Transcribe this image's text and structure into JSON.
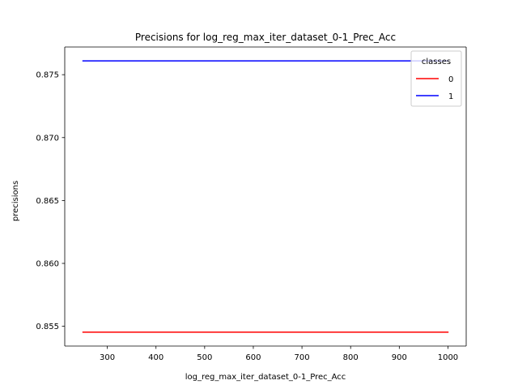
{
  "chart_data": {
    "type": "line",
    "title": "Precisions for log_reg_max_iter_dataset_0-1_Prec_Acc",
    "xlabel": "log_reg_max_iter_dataset_0-1_Prec_Acc",
    "ylabel": "precisions",
    "x": [
      250,
      1000
    ],
    "xlim": [
      212.5,
      1037.5
    ],
    "ylim": [
      0.85343,
      0.8772
    ],
    "xticks": [
      300,
      400,
      500,
      600,
      700,
      800,
      900,
      1000
    ],
    "xtick_labels": [
      "300",
      "400",
      "500",
      "600",
      "700",
      "800",
      "900",
      "1000"
    ],
    "yticks": [
      0.855,
      0.86,
      0.865,
      0.87,
      0.875
    ],
    "ytick_labels": [
      "0.855",
      "0.860",
      "0.865",
      "0.870",
      "0.875"
    ],
    "grid": false,
    "legend": {
      "title": "classes",
      "placement": "upper right"
    },
    "series": [
      {
        "name": "0",
        "color": "#ff0000",
        "values": [
          0.85453,
          0.85453
        ]
      },
      {
        "name": "1",
        "color": "#0000ff",
        "values": [
          0.8761,
          0.8761
        ]
      }
    ]
  }
}
